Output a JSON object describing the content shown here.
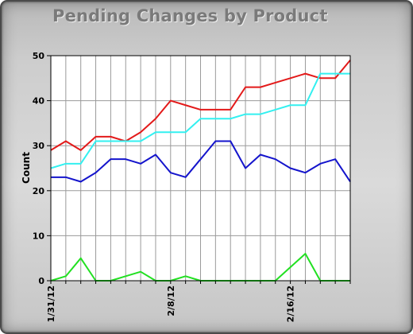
{
  "chart_data": {
    "type": "line",
    "title": "Pending Changes by Product",
    "xlabel": "",
    "ylabel": "Count",
    "ylim": [
      0,
      50
    ],
    "yticks": [
      "0",
      "10",
      "20",
      "30",
      "40",
      "50"
    ],
    "xtick_labels": [
      {
        "index": 0,
        "label": "1/31/12"
      },
      {
        "index": 8,
        "label": "2/8/12"
      },
      {
        "index": 16,
        "label": "2/16/12"
      }
    ],
    "x": [
      "1/31/12",
      "2/1/12",
      "2/2/12",
      "2/3/12",
      "2/4/12",
      "2/5/12",
      "2/6/12",
      "2/7/12",
      "2/8/12",
      "2/9/12",
      "2/10/12",
      "2/11/12",
      "2/12/12",
      "2/13/12",
      "2/14/12",
      "2/15/12",
      "2/16/12",
      "2/17/12",
      "2/18/12",
      "2/19/12",
      "2/20/12"
    ],
    "grid": true,
    "series": [
      {
        "color": "#e31a1a",
        "values": [
          29,
          31,
          29,
          32,
          32,
          31,
          33,
          36,
          40,
          39,
          38,
          38,
          38,
          43,
          43,
          44,
          45,
          46,
          45,
          45,
          49
        ]
      },
      {
        "color": "#33f0f0",
        "values": [
          25,
          26,
          26,
          31,
          31,
          31,
          31,
          33,
          33,
          33,
          36,
          36,
          36,
          37,
          37,
          38,
          39,
          39,
          46,
          46,
          46
        ]
      },
      {
        "color": "#1414cc",
        "values": [
          23,
          23,
          22,
          24,
          27,
          27,
          26,
          28,
          24,
          23,
          27,
          31,
          31,
          25,
          28,
          27,
          25,
          24,
          26,
          27,
          22
        ]
      },
      {
        "color": "#22e022",
        "values": [
          0,
          1,
          5,
          0,
          0,
          1,
          2,
          0,
          0,
          1,
          0,
          0,
          0,
          0,
          0,
          0,
          3,
          6,
          0,
          0,
          0
        ]
      }
    ]
  }
}
